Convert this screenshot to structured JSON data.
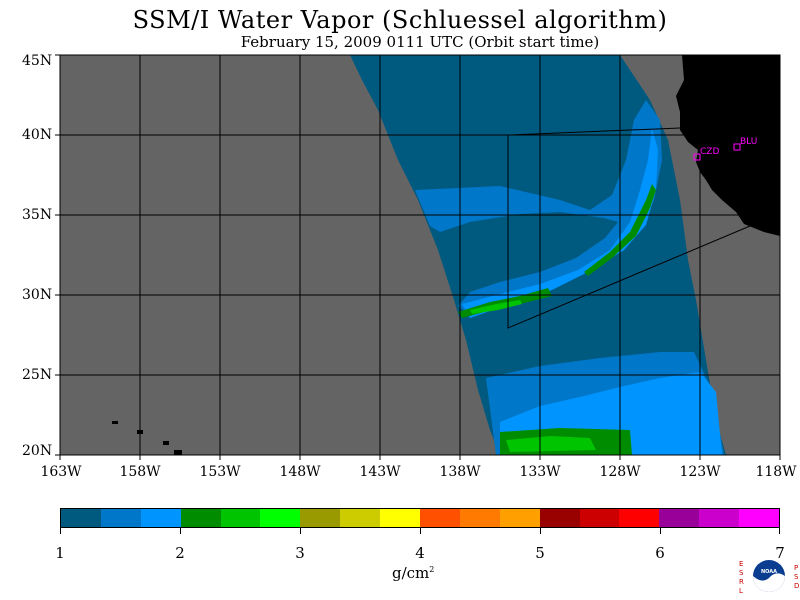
{
  "title": "SSM/I Water Vapor (Schluessel algorithm)",
  "subtitle": "February 15, 2009  0111 UTC  (Orbit start time)",
  "lat_labels": [
    "45N",
    "40N",
    "35N",
    "30N",
    "25N",
    "20N"
  ],
  "lon_labels": [
    "163W",
    "158W",
    "153W",
    "148W",
    "143W",
    "138W",
    "133W",
    "128W",
    "123W",
    "118W"
  ],
  "stations": [
    {
      "name": "CZD",
      "lon": -123.1,
      "lat": 38.6
    },
    {
      "name": "BLU",
      "lon": -120.9,
      "lat": 39.3
    }
  ],
  "colorbar": {
    "labels": [
      "1",
      "2",
      "3",
      "4",
      "5",
      "6",
      "7"
    ],
    "units": "g/cm",
    "units_sup": "2",
    "colors": [
      "#005a80",
      "#0077c8",
      "#0094ff",
      "#008c00",
      "#00c400",
      "#00ff00",
      "#999900",
      "#cccc00",
      "#ffff00",
      "#ff5000",
      "#ff7a00",
      "#ffa000",
      "#990000",
      "#cc0000",
      "#ff0000",
      "#990099",
      "#cc00cc",
      "#ff00ff"
    ]
  },
  "colors": {
    "no_data": "#646464",
    "land": "#000000",
    "grid": "#000000",
    "station": "#ff00ff"
  },
  "logo": {
    "left_text": "ESRL",
    "right_text": "PSD",
    "center_text": "NOAA"
  }
}
